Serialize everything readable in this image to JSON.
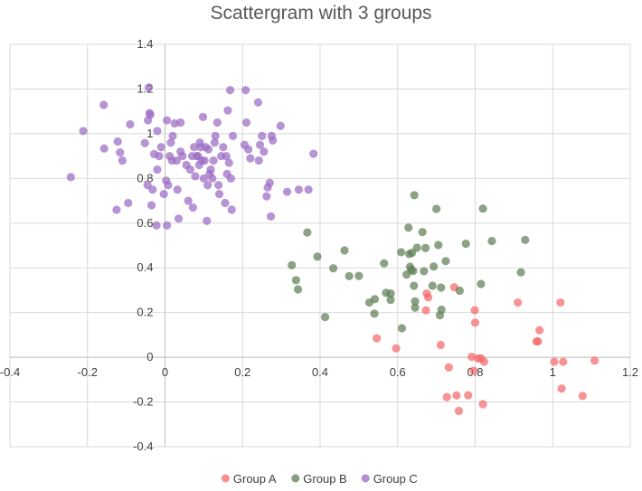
{
  "chart_data": {
    "type": "scatter",
    "title": "Scattergram with 3 groups",
    "xlabel": "",
    "ylabel": "",
    "xlim": [
      -0.4,
      1.2
    ],
    "ylim": [
      -0.4,
      1.4
    ],
    "x_ticks": [
      -0.4,
      -0.2,
      0,
      0.2,
      0.4,
      0.6,
      0.8,
      1,
      1.2
    ],
    "x_tick_labels": [
      "-0.4",
      "-0.2",
      "0",
      "0.2",
      "0.4",
      "0.6",
      "0.8",
      "1",
      "1.2"
    ],
    "y_ticks": [
      -0.4,
      -0.2,
      0,
      0.2,
      0.4,
      0.6,
      0.8,
      1,
      1.2,
      1.4
    ],
    "y_tick_labels": [
      "-0.4",
      "-0.2",
      "0",
      "0.2",
      "0.4",
      "0.6",
      "0.8",
      "1",
      "1.2",
      "1.4"
    ],
    "grid": true,
    "legend_position": "bottom",
    "series": [
      {
        "name": "Group A",
        "color": "#f4696b",
        "points": [
          [
            0.546,
            0.085
          ],
          [
            0.596,
            0.04
          ],
          [
            0.673,
            0.21
          ],
          [
            0.675,
            0.285
          ],
          [
            0.679,
            0.268
          ],
          [
            0.711,
            0.055
          ],
          [
            0.746,
            0.313
          ],
          [
            0.732,
            -0.045
          ],
          [
            0.727,
            -0.178
          ],
          [
            0.752,
            -0.171
          ],
          [
            0.758,
            -0.24
          ],
          [
            0.782,
            -0.17
          ],
          [
            0.791,
            0.002
          ],
          [
            0.796,
            -0.06
          ],
          [
            0.799,
            0.211
          ],
          [
            0.8,
            0.155
          ],
          [
            0.807,
            -0.005
          ],
          [
            0.815,
            -0.005
          ],
          [
            0.82,
            -0.21
          ],
          [
            0.823,
            -0.02
          ],
          [
            0.91,
            0.245
          ],
          [
            0.958,
            0.071
          ],
          [
            0.962,
            0.071
          ],
          [
            0.966,
            0.121
          ],
          [
            1.004,
            -0.02
          ],
          [
            1.02,
            0.245
          ],
          [
            1.023,
            -0.14
          ],
          [
            1.027,
            -0.02
          ],
          [
            1.077,
            -0.173
          ],
          [
            1.108,
            -0.015
          ]
        ]
      },
      {
        "name": "Group B",
        "color": "#5e7f54",
        "points": [
          [
            0.327,
            0.412
          ],
          [
            0.338,
            0.345
          ],
          [
            0.343,
            0.304
          ],
          [
            0.367,
            0.558
          ],
          [
            0.393,
            0.45
          ],
          [
            0.413,
            0.18
          ],
          [
            0.434,
            0.398
          ],
          [
            0.463,
            0.478
          ],
          [
            0.475,
            0.363
          ],
          [
            0.5,
            0.364
          ],
          [
            0.527,
            0.245
          ],
          [
            0.54,
            0.195
          ],
          [
            0.541,
            0.26
          ],
          [
            0.565,
            0.42
          ],
          [
            0.57,
            0.288
          ],
          [
            0.582,
            0.285
          ],
          [
            0.582,
            0.257
          ],
          [
            0.609,
            0.47
          ],
          [
            0.611,
            0.13
          ],
          [
            0.623,
            0.37
          ],
          [
            0.628,
            0.58
          ],
          [
            0.63,
            0.462
          ],
          [
            0.632,
            0.405
          ],
          [
            0.635,
            0.392
          ],
          [
            0.637,
            0.467
          ],
          [
            0.64,
            0.386
          ],
          [
            0.642,
            0.32
          ],
          [
            0.643,
            0.725
          ],
          [
            0.645,
            0.222
          ],
          [
            0.645,
            0.25
          ],
          [
            0.65,
            0.49
          ],
          [
            0.664,
            0.56
          ],
          [
            0.668,
            0.385
          ],
          [
            0.672,
            0.489
          ],
          [
            0.69,
            0.32
          ],
          [
            0.693,
            0.406
          ],
          [
            0.7,
            0.664
          ],
          [
            0.705,
            0.502
          ],
          [
            0.709,
            0.188
          ],
          [
            0.712,
            0.312
          ],
          [
            0.713,
            0.213
          ],
          [
            0.724,
            0.43
          ],
          [
            0.76,
            0.298
          ],
          [
            0.776,
            0.508
          ],
          [
            0.815,
            0.328
          ],
          [
            0.82,
            0.665
          ],
          [
            0.843,
            0.52
          ],
          [
            0.918,
            0.38
          ],
          [
            0.929,
            0.525
          ]
        ]
      },
      {
        "name": "Group C",
        "color": "#9b6bc4",
        "points": [
          [
            -0.243,
            0.806
          ],
          [
            -0.211,
            1.012
          ],
          [
            -0.158,
            1.129
          ],
          [
            -0.157,
            0.934
          ],
          [
            -0.125,
            0.66
          ],
          [
            -0.122,
            0.965
          ],
          [
            -0.116,
            0.916
          ],
          [
            -0.11,
            0.88
          ],
          [
            -0.095,
            0.69
          ],
          [
            -0.09,
            1.042
          ],
          [
            -0.052,
            0.958
          ],
          [
            -0.045,
            0.77
          ],
          [
            -0.044,
            1.06
          ],
          [
            -0.042,
            1.207
          ],
          [
            -0.04,
            1.092
          ],
          [
            -0.038,
            1.085
          ],
          [
            -0.035,
            0.68
          ],
          [
            -0.032,
            0.75
          ],
          [
            -0.028,
            0.909
          ],
          [
            -0.022,
            0.59
          ],
          [
            -0.02,
            1.012
          ],
          [
            -0.02,
            0.84
          ],
          [
            -0.015,
            0.9
          ],
          [
            -0.01,
            0.94
          ],
          [
            -0.003,
            0.73
          ],
          [
            0.003,
            0.79
          ],
          [
            0.005,
            1.06
          ],
          [
            0.005,
            0.59
          ],
          [
            0.008,
            0.77
          ],
          [
            0.012,
            0.9
          ],
          [
            0.015,
            0.96
          ],
          [
            0.018,
            0.88
          ],
          [
            0.02,
            0.99
          ],
          [
            0.025,
            1.046
          ],
          [
            0.03,
            0.88
          ],
          [
            0.032,
            0.75
          ],
          [
            0.035,
            0.62
          ],
          [
            0.04,
            1.05
          ],
          [
            0.04,
            0.92
          ],
          [
            0.045,
            0.9
          ],
          [
            0.055,
            0.86
          ],
          [
            0.06,
            0.7
          ],
          [
            0.065,
            0.84
          ],
          [
            0.07,
            0.9
          ],
          [
            0.072,
            0.67
          ],
          [
            0.075,
            0.94
          ],
          [
            0.078,
            0.81
          ],
          [
            0.082,
            0.9
          ],
          [
            0.085,
            0.9
          ],
          [
            0.088,
            0.86
          ],
          [
            0.09,
            0.96
          ],
          [
            0.092,
            0.94
          ],
          [
            0.095,
            0.88
          ],
          [
            0.098,
            1.075
          ],
          [
            0.1,
            0.8
          ],
          [
            0.102,
            0.88
          ],
          [
            0.105,
            0.94
          ],
          [
            0.108,
            0.61
          ],
          [
            0.11,
            0.77
          ],
          [
            0.112,
            0.93
          ],
          [
            0.115,
            0.82
          ],
          [
            0.118,
            0.84
          ],
          [
            0.122,
            0.8
          ],
          [
            0.125,
            0.88
          ],
          [
            0.128,
            0.96
          ],
          [
            0.13,
            0.99
          ],
          [
            0.135,
            1.05
          ],
          [
            0.138,
            0.77
          ],
          [
            0.14,
            0.73
          ],
          [
            0.145,
            0.9
          ],
          [
            0.15,
            0.94
          ],
          [
            0.155,
            0.69
          ],
          [
            0.158,
            0.9
          ],
          [
            0.16,
            0.82
          ],
          [
            0.162,
            1.104
          ],
          [
            0.165,
            0.87
          ],
          [
            0.168,
            1.195
          ],
          [
            0.17,
            0.8
          ],
          [
            0.172,
            0.66
          ],
          [
            0.175,
            0.99
          ],
          [
            0.205,
            0.95
          ],
          [
            0.208,
            1.195
          ],
          [
            0.21,
            1.05
          ],
          [
            0.215,
            0.93
          ],
          [
            0.22,
            0.89
          ],
          [
            0.24,
            1.14
          ],
          [
            0.242,
            0.88
          ],
          [
            0.245,
            0.95
          ],
          [
            0.25,
            0.99
          ],
          [
            0.255,
            0.92
          ],
          [
            0.262,
            0.72
          ],
          [
            0.265,
            0.76
          ],
          [
            0.27,
            0.78
          ],
          [
            0.273,
            0.63
          ],
          [
            0.275,
            0.99
          ],
          [
            0.278,
            0.97
          ],
          [
            0.298,
            1.035
          ],
          [
            0.315,
            0.74
          ],
          [
            0.345,
            0.75
          ],
          [
            0.37,
            0.75
          ],
          [
            0.383,
            0.91
          ]
        ]
      }
    ]
  }
}
